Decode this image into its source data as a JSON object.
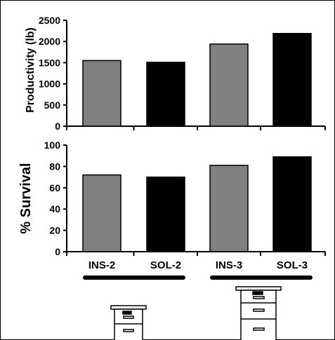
{
  "chart_data": [
    {
      "type": "bar",
      "ylabel": "Productivity (lb)",
      "categories": [
        "INS-2",
        "SOL-2",
        "INS-3",
        "SOL-3"
      ],
      "values": [
        1550,
        1510,
        1940,
        2190
      ],
      "colors": [
        "#808080",
        "#000000",
        "#808080",
        "#000000"
      ],
      "ylim": [
        0,
        2500
      ],
      "yticks": [
        "0",
        "500",
        "1000",
        "1500",
        "2000",
        "2500"
      ],
      "grid": false
    },
    {
      "type": "bar",
      "ylabel": "% Survival",
      "categories": [
        "INS-2",
        "SOL-2",
        "INS-3",
        "SOL-3"
      ],
      "values": [
        72,
        70,
        81,
        89
      ],
      "colors": [
        "#808080",
        "#000000",
        "#808080",
        "#000000"
      ],
      "ylim": [
        0,
        100
      ],
      "yticks": [
        "0",
        "20",
        "40",
        "60",
        "80",
        "100"
      ],
      "grid": false
    }
  ],
  "illustrations": [
    "2-story-hive-icon",
    "3-story-hive-icon"
  ]
}
